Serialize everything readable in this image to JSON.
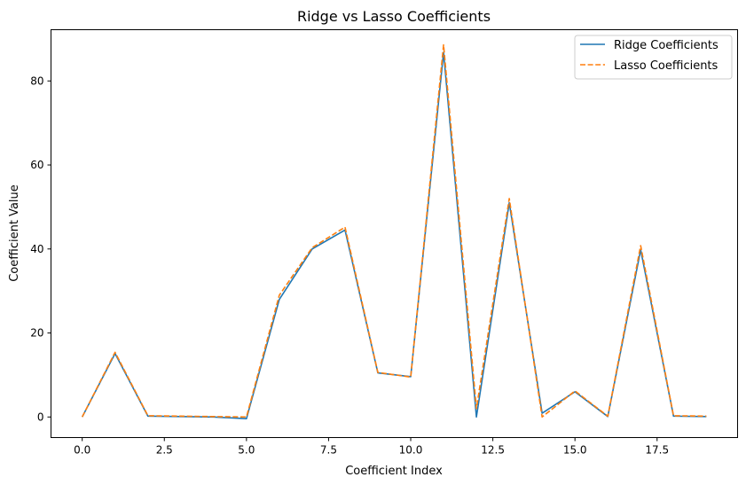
{
  "chart_data": {
    "type": "line",
    "title": "Ridge vs Lasso Coefficients",
    "xlabel": "Coefficient Index",
    "ylabel": "Coefficient Value",
    "xlim": [
      -0.95,
      19.95
    ],
    "ylim": [
      -4.9,
      92.2
    ],
    "xticks": [
      0.0,
      2.5,
      5.0,
      7.5,
      10.0,
      12.5,
      15.0,
      17.5
    ],
    "xtick_labels": [
      "0.0",
      "2.5",
      "5.0",
      "7.5",
      "10.0",
      "12.5",
      "15.0",
      "17.5"
    ],
    "yticks": [
      0,
      20,
      40,
      60,
      80
    ],
    "ytick_labels": [
      "0",
      "20",
      "40",
      "60",
      "80"
    ],
    "grid": false,
    "legend_position": "top-right",
    "x": [
      0,
      1,
      2,
      3,
      4,
      5,
      6,
      7,
      8,
      9,
      10,
      11,
      12,
      13,
      14,
      15,
      16,
      17,
      18,
      19
    ],
    "series": [
      {
        "name": "Ridge Coefficients",
        "color": "#1f77b4",
        "linestyle": "solid",
        "values": [
          0.0,
          15.1,
          0.2,
          0.1,
          0.0,
          -0.4,
          28.0,
          40.0,
          44.5,
          10.5,
          9.6,
          86.8,
          0.0,
          51.0,
          0.9,
          6.0,
          0.1,
          39.8,
          0.2,
          0.1
        ]
      },
      {
        "name": "Lasso Coefficients",
        "color": "#ff7f0e",
        "linestyle": "dashed",
        "values": [
          0.0,
          15.4,
          0.3,
          0.2,
          0.1,
          0.0,
          29.0,
          40.3,
          45.2,
          10.6,
          9.5,
          88.6,
          2.0,
          52.0,
          0.0,
          6.2,
          0.2,
          40.8,
          0.3,
          0.2
        ]
      }
    ]
  }
}
